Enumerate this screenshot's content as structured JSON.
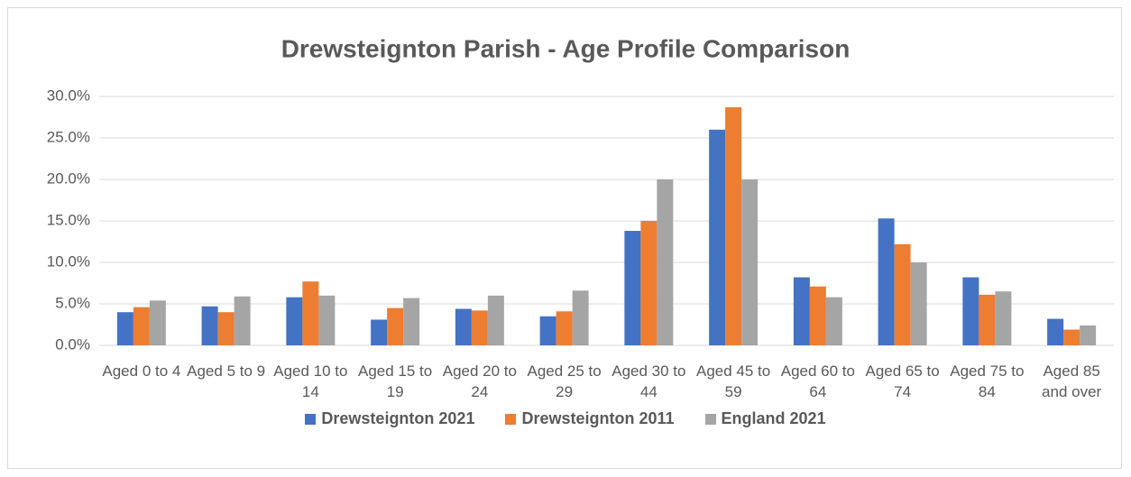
{
  "chart_data": {
    "type": "bar",
    "title": "Drewsteignton Parish - Age Profile Comparison",
    "categories": [
      "Aged 0 to 4",
      "Aged 5 to 9",
      "Aged 10 to 14",
      "Aged 15 to 19",
      "Aged 20 to 24",
      "Aged 25 to 29",
      "Aged 30 to 44",
      "Aged 45 to 59",
      "Aged 60 to 64",
      "Aged 65 to 74",
      "Aged 75 to 84",
      "Aged 85 and over"
    ],
    "series": [
      {
        "name": "Drewsteignton 2021",
        "color": "#4472c4",
        "values": [
          4.0,
          4.7,
          5.8,
          3.1,
          4.4,
          3.5,
          13.8,
          26.0,
          8.2,
          15.3,
          8.2,
          3.2
        ]
      },
      {
        "name": "Drewsteignton 2011",
        "color": "#ed7d31",
        "values": [
          4.6,
          4.0,
          7.7,
          4.5,
          4.2,
          4.1,
          15.0,
          28.7,
          7.1,
          12.2,
          6.1,
          1.9
        ]
      },
      {
        "name": "England 2021",
        "color": "#a5a5a5",
        "values": [
          5.4,
          5.9,
          6.0,
          5.7,
          6.0,
          6.6,
          20.0,
          20.0,
          5.8,
          10.0,
          6.5,
          2.4
        ]
      }
    ],
    "ylim": [
      0,
      30
    ],
    "yticks": [
      {
        "value": 0,
        "label": "0.0%"
      },
      {
        "value": 5,
        "label": "5.0%"
      },
      {
        "value": 10,
        "label": "10.0%"
      },
      {
        "value": 15,
        "label": "15.0%"
      },
      {
        "value": 20,
        "label": "20.0%"
      },
      {
        "value": 25,
        "label": "25.0%"
      },
      {
        "value": 30,
        "label": "30.0%"
      }
    ],
    "grid": true,
    "legend": "bottom"
  }
}
